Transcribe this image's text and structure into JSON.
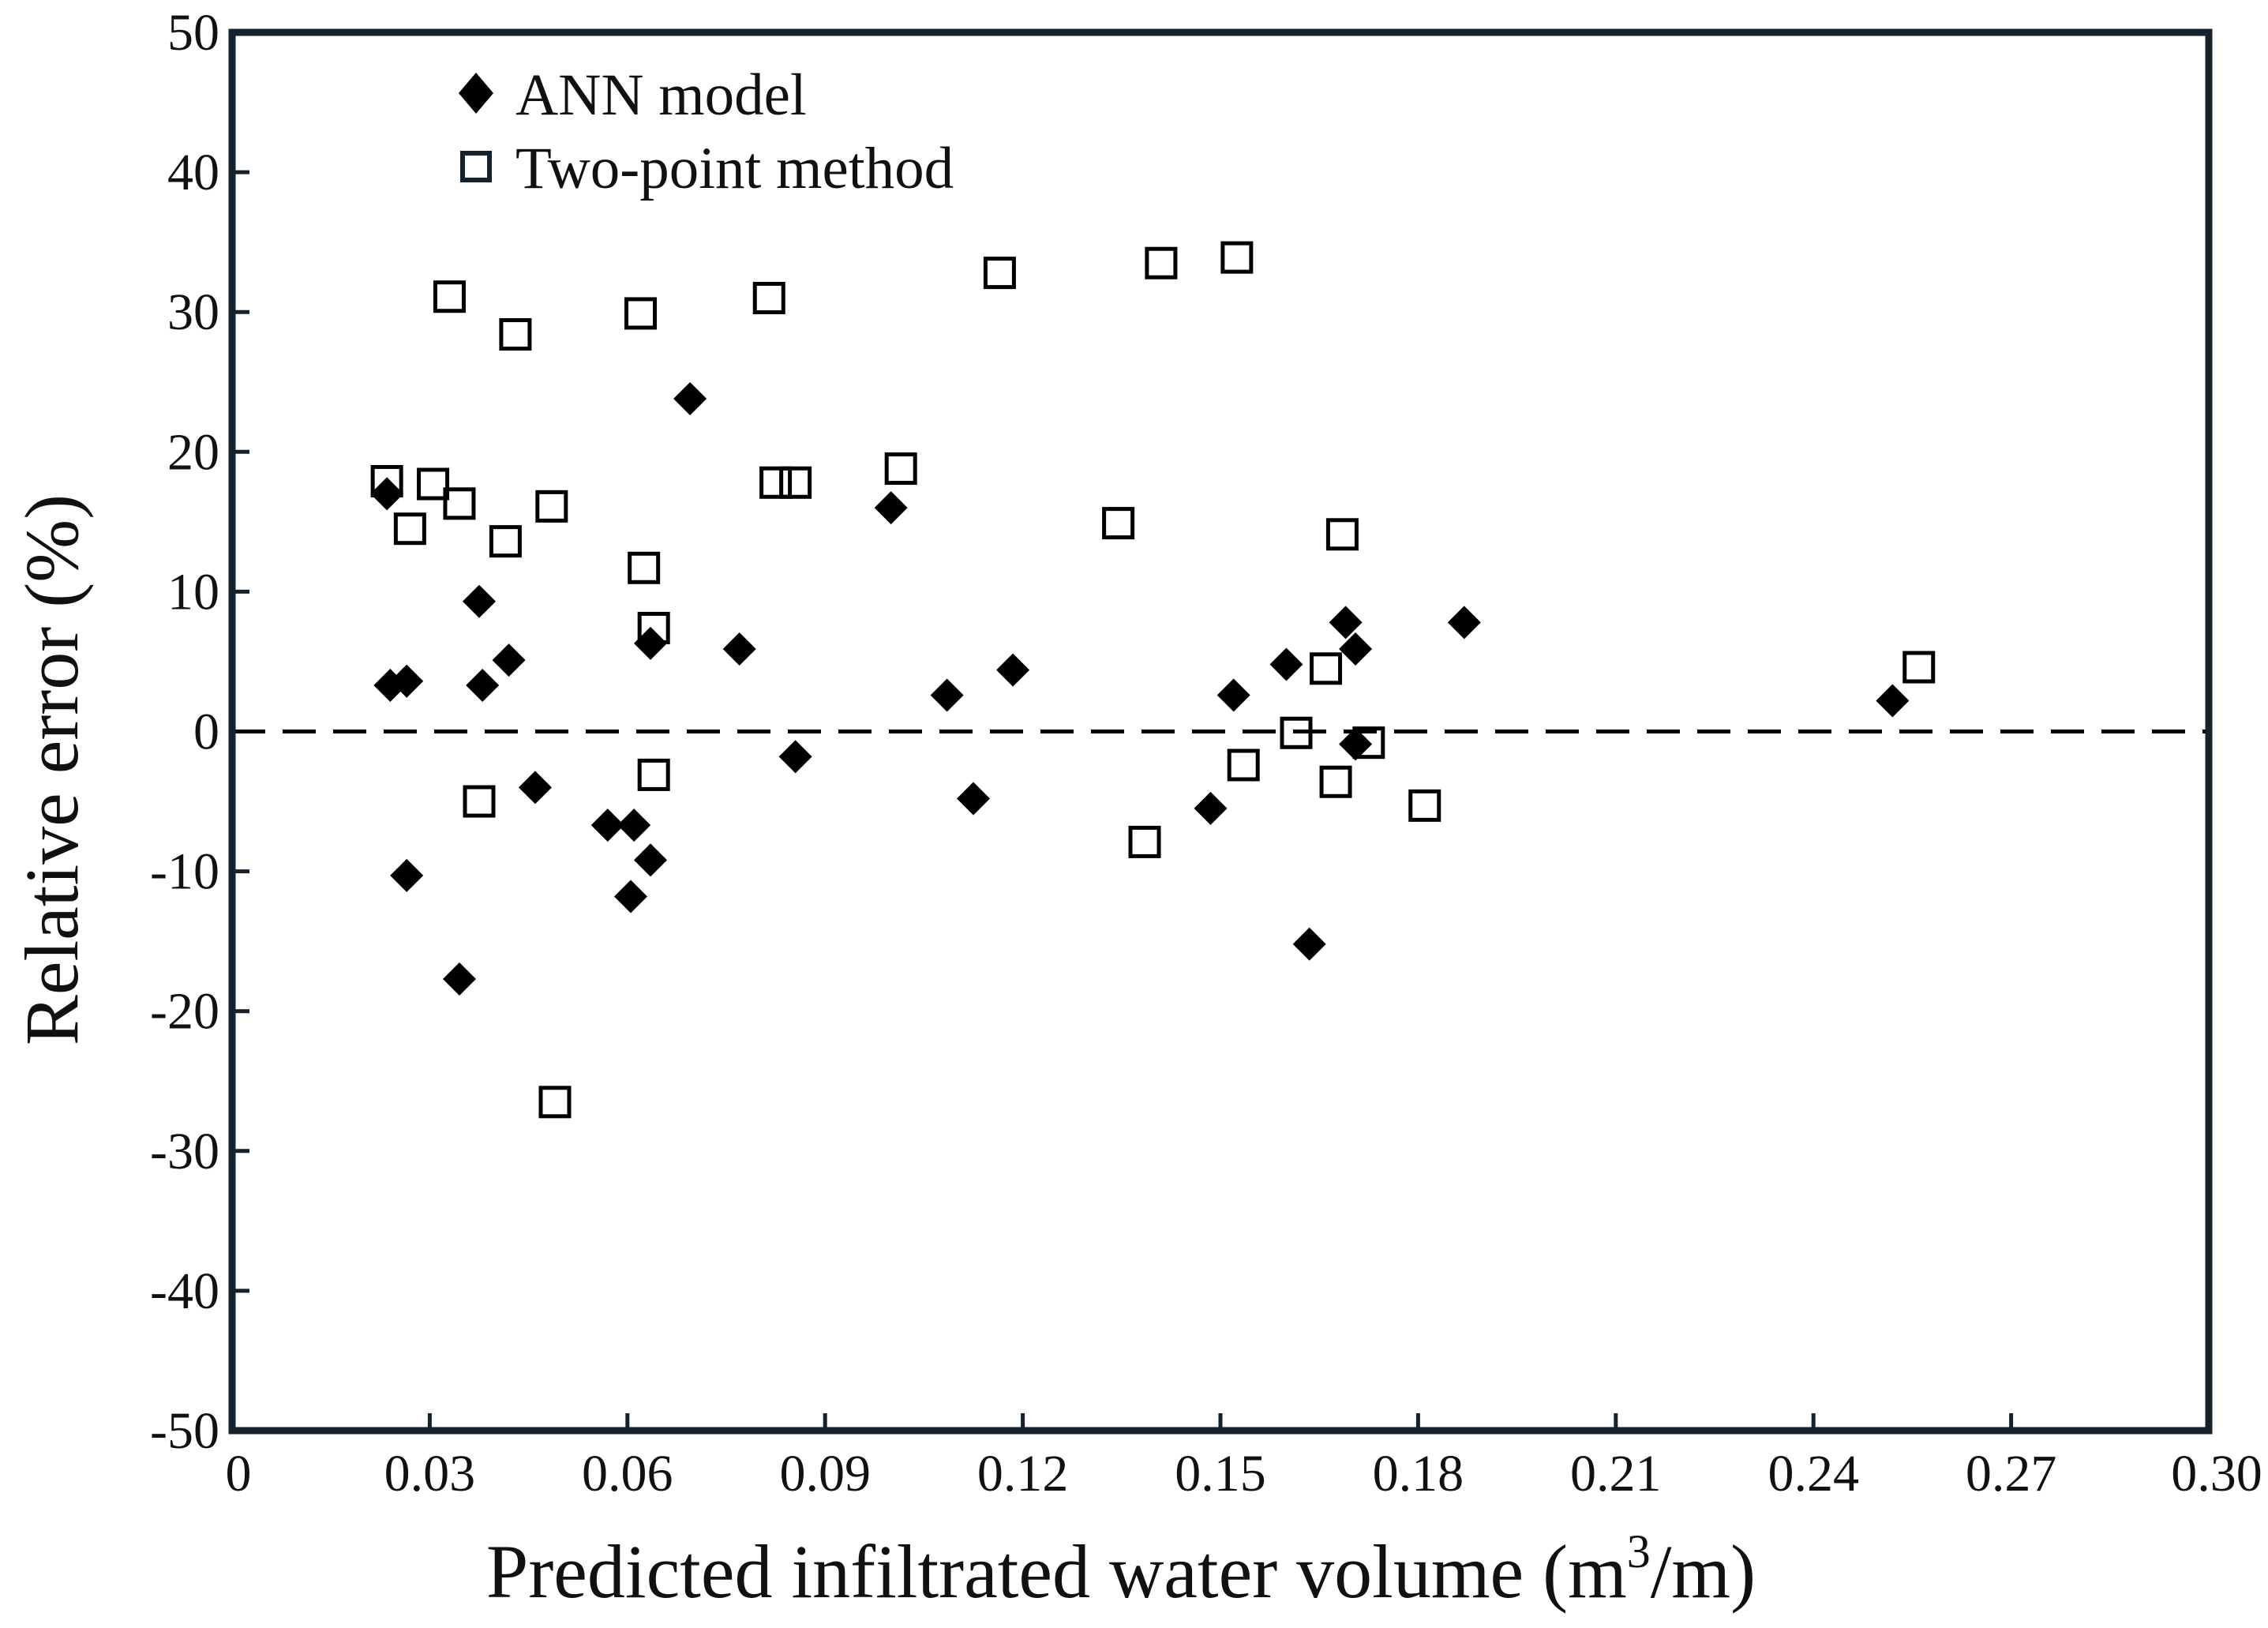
{
  "chart_data": {
    "type": "scatter",
    "title": "",
    "xlabel": "Predicted infiltrated water volume (m³/m)",
    "xlabel_parts": {
      "main": "Predicted infiltrated water volume (m",
      "sup": "3",
      "end": "/m)"
    },
    "ylabel": "Relative error (%)",
    "xlim": [
      0,
      0.3
    ],
    "ylim": [
      -50,
      50
    ],
    "x_ticks": [
      0,
      0.03,
      0.06,
      0.09,
      0.12,
      0.15,
      0.18,
      0.21,
      0.24,
      0.27,
      0.3
    ],
    "x_tick_labels": [
      "0",
      "0.03",
      "0.06",
      "0.09",
      "0.12",
      "0.15",
      "0.18",
      "0.21",
      "0.24",
      "0.27",
      "0.30"
    ],
    "y_ticks": [
      50,
      40,
      30,
      20,
      10,
      0,
      -10,
      -20,
      -30,
      -40,
      -50
    ],
    "y_tick_labels": [
      "50",
      "40",
      "30",
      "20",
      "10",
      "0",
      "-10",
      "-20",
      "-30",
      "-40",
      "-50"
    ],
    "grid": false,
    "reference_line": {
      "y": 0,
      "style": "dashed"
    },
    "legend": {
      "position": "top-left"
    },
    "colors": {
      "ann": "#000000",
      "two_point": "#000000",
      "frame": "#14222e"
    },
    "series": [
      {
        "name": "ANN model",
        "marker": "filled-diamond",
        "points": [
          [
            0.0235,
            17
          ],
          [
            0.024,
            3.3
          ],
          [
            0.0265,
            3.6
          ],
          [
            0.0265,
            -10.3
          ],
          [
            0.0345,
            -17.7
          ],
          [
            0.0375,
            9.3
          ],
          [
            0.038,
            3.3
          ],
          [
            0.042,
            5.1
          ],
          [
            0.046,
            -4
          ],
          [
            0.057,
            -6.7
          ],
          [
            0.0605,
            -11.8
          ],
          [
            0.061,
            -6.7
          ],
          [
            0.0635,
            -9.2
          ],
          [
            0.0635,
            6.3
          ],
          [
            0.0695,
            23.8
          ],
          [
            0.077,
            5.9
          ],
          [
            0.0855,
            -1.8
          ],
          [
            0.1,
            16
          ],
          [
            0.1085,
            2.6
          ],
          [
            0.1125,
            -4.8
          ],
          [
            0.1185,
            4.4
          ],
          [
            0.1485,
            -5.5
          ],
          [
            0.152,
            2.6
          ],
          [
            0.16,
            4.8
          ],
          [
            0.1635,
            -15.2
          ],
          [
            0.169,
            7.8
          ],
          [
            0.1705,
            5.9
          ],
          [
            0.1705,
            -0.9
          ],
          [
            0.187,
            7.8
          ],
          [
            0.252,
            2.2
          ]
        ]
      },
      {
        "name": "Two-point method",
        "marker": "open-square",
        "points": [
          [
            0.0235,
            17.9
          ],
          [
            0.027,
            14.5
          ],
          [
            0.0305,
            17.7
          ],
          [
            0.033,
            31.1
          ],
          [
            0.0345,
            16.3
          ],
          [
            0.0375,
            -5
          ],
          [
            0.0415,
            13.6
          ],
          [
            0.043,
            28.4
          ],
          [
            0.0485,
            16.1
          ],
          [
            0.049,
            -26.5
          ],
          [
            0.062,
            29.9
          ],
          [
            0.0625,
            11.7
          ],
          [
            0.064,
            7.4
          ],
          [
            0.064,
            -3.1
          ],
          [
            0.0815,
            31
          ],
          [
            0.0825,
            17.8
          ],
          [
            0.0855,
            17.8
          ],
          [
            0.1015,
            18.8
          ],
          [
            0.1165,
            32.8
          ],
          [
            0.1345,
            14.9
          ],
          [
            0.1385,
            -7.9
          ],
          [
            0.141,
            33.5
          ],
          [
            0.1525,
            33.9
          ],
          [
            0.1535,
            -2.4
          ],
          [
            0.1615,
            -0.1
          ],
          [
            0.166,
            4.5
          ],
          [
            0.1675,
            -3.6
          ],
          [
            0.1685,
            14.1
          ],
          [
            0.1725,
            -0.8
          ],
          [
            0.181,
            -5.3
          ],
          [
            0.256,
            4.6
          ]
        ]
      }
    ]
  }
}
